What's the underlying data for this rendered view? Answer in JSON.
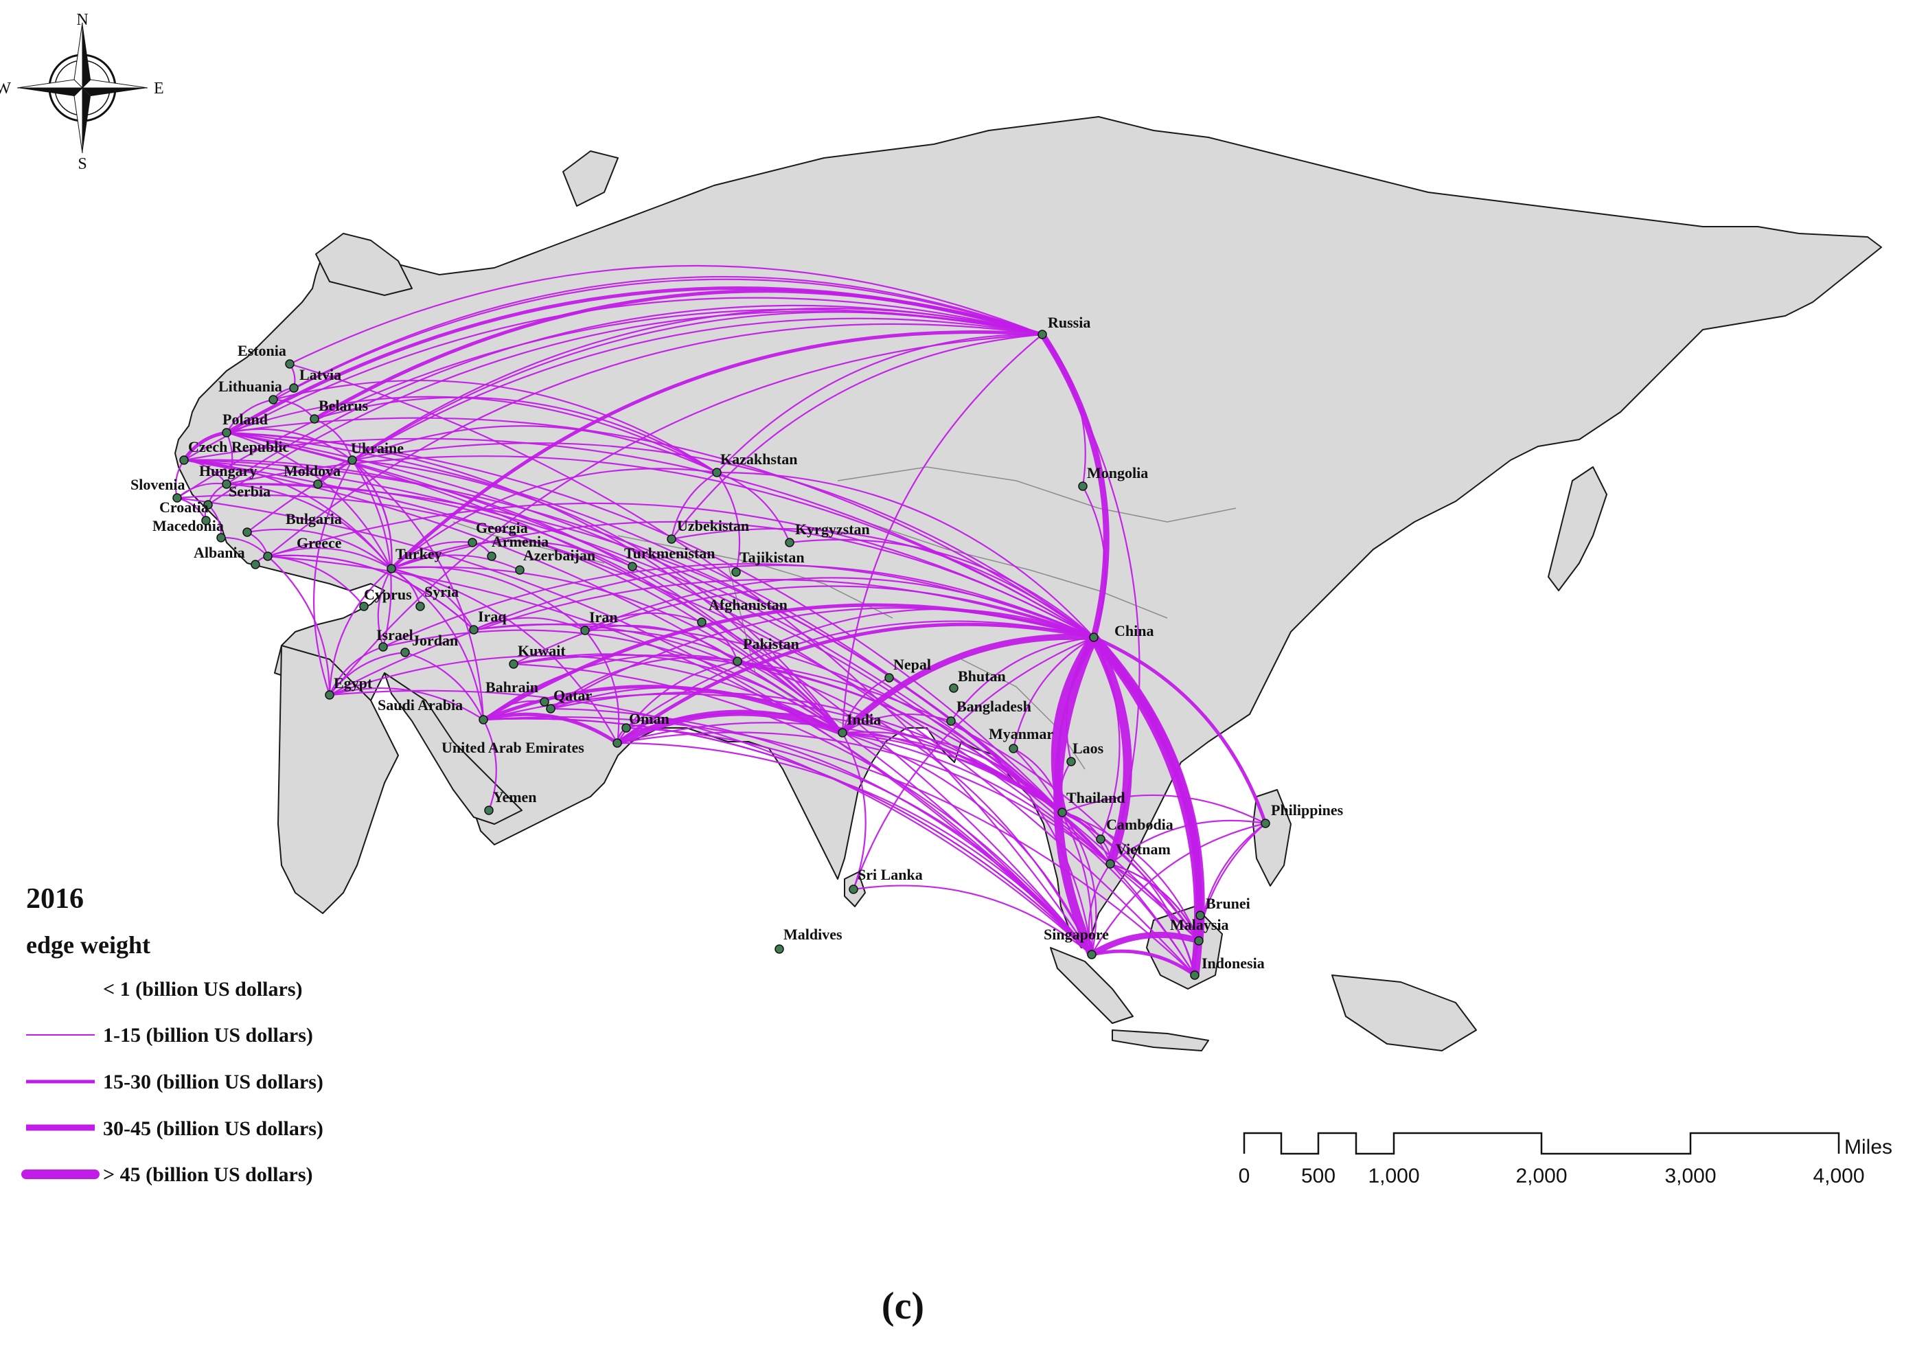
{
  "year": "2016",
  "legend": {
    "title": "edge weight",
    "items": [
      {
        "label": "< 1 (billion US dollars)"
      },
      {
        "label": "1-15 (billion US dollars)"
      },
      {
        "label": "15-30 (billion US dollars)"
      },
      {
        "label": "30-45 (billion US dollars)"
      },
      {
        "label": "> 45 (billion US dollars)"
      }
    ]
  },
  "scale_bar": {
    "unit": "Miles",
    "ticks": [
      "0",
      "500",
      "1,000",
      "2,000",
      "3,000",
      "4,000"
    ]
  },
  "compass": {
    "n": "N",
    "s": "S",
    "e": "E",
    "w": "W"
  },
  "panel_label": "(c)",
  "colors": {
    "edge": "#c21ce8",
    "land": "#d9d9d9",
    "node": "#3f7a52"
  },
  "countries": [
    {
      "name": "Russia"
    },
    {
      "name": "China"
    },
    {
      "name": "Mongolia"
    },
    {
      "name": "Kazakhstan"
    },
    {
      "name": "Uzbekistan"
    },
    {
      "name": "Kyrgyzstan"
    },
    {
      "name": "Turkmenistan"
    },
    {
      "name": "Tajikistan"
    },
    {
      "name": "Afghanistan"
    },
    {
      "name": "Pakistan"
    },
    {
      "name": "India"
    },
    {
      "name": "Nepal"
    },
    {
      "name": "Bhutan"
    },
    {
      "name": "Bangladesh"
    },
    {
      "name": "Myanmar"
    },
    {
      "name": "Laos"
    },
    {
      "name": "Thailand"
    },
    {
      "name": "Cambodia"
    },
    {
      "name": "Vietnam"
    },
    {
      "name": "Philippines"
    },
    {
      "name": "Brunei"
    },
    {
      "name": "Malaysia"
    },
    {
      "name": "Singapore"
    },
    {
      "name": "Indonesia"
    },
    {
      "name": "Sri Lanka"
    },
    {
      "name": "Maldives"
    },
    {
      "name": "Estonia"
    },
    {
      "name": "Latvia"
    },
    {
      "name": "Lithuania"
    },
    {
      "name": "Belarus"
    },
    {
      "name": "Poland"
    },
    {
      "name": "Czech Republic"
    },
    {
      "name": "Ukraine"
    },
    {
      "name": "Hungary"
    },
    {
      "name": "Moldova"
    },
    {
      "name": "Slovenia"
    },
    {
      "name": "Serbia"
    },
    {
      "name": "Croatia"
    },
    {
      "name": "Bulgaria"
    },
    {
      "name": "Macedonia"
    },
    {
      "name": "Albania"
    },
    {
      "name": "Greece"
    },
    {
      "name": "Georgia"
    },
    {
      "name": "Armenia"
    },
    {
      "name": "Azerbaijan"
    },
    {
      "name": "Turkey"
    },
    {
      "name": "Cyprus"
    },
    {
      "name": "Syria"
    },
    {
      "name": "Iraq"
    },
    {
      "name": "Iran"
    },
    {
      "name": "Israel"
    },
    {
      "name": "Jordan"
    },
    {
      "name": "Kuwait"
    },
    {
      "name": "Egypt"
    },
    {
      "name": "Saudi Arabia"
    },
    {
      "name": "Bahrain"
    },
    {
      "name": "Qatar"
    },
    {
      "name": "United Arab Emirates"
    },
    {
      "name": "Oman"
    },
    {
      "name": "Yemen"
    }
  ]
}
